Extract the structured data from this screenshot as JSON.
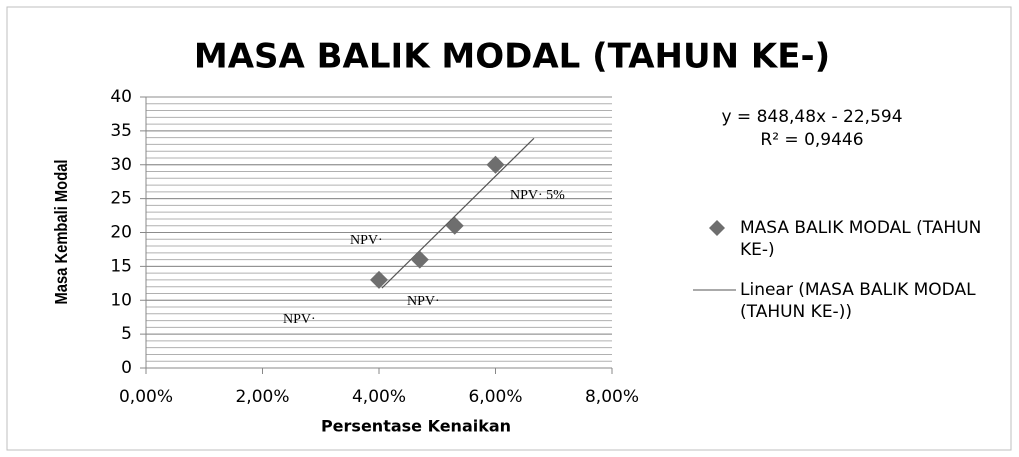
{
  "chart_data": {
    "type": "scatter",
    "title": "MASA BALIK MODAL (TAHUN KE-)",
    "x_label": "Persentase Kenaikan",
    "y_label": "Masa Kembali Modal",
    "series": [
      {
        "name": "MASA BALIK MODAL (TAHUN KE-)",
        "color": "#6e6e6e",
        "x": [
          0.04,
          0.047,
          0.053,
          0.06
        ],
        "values": [
          13,
          16,
          21,
          30
        ]
      }
    ],
    "trendline": {
      "name": "Linear (MASA BALIK MODAL (TAHUN KE-))",
      "color": "#555555",
      "x": [
        0.0405,
        0.0666
      ],
      "values": [
        11.8,
        33.9
      ],
      "equation": "y = 848,48x - 22,594",
      "r_squared": "R² = 0,9446"
    },
    "annotations": [
      "NPV· 5%",
      "NPV·",
      "NPV·",
      "NPV·"
    ],
    "xlim": [
      0,
      0.08
    ],
    "xticks": [
      {
        "value": 0,
        "label": "0,00%"
      },
      {
        "value": 0.02,
        "label": "2,00%"
      },
      {
        "value": 0.04,
        "label": "4,00%"
      },
      {
        "value": 0.06,
        "label": "6,00%"
      },
      {
        "value": 0.08,
        "label": "8,00%"
      }
    ],
    "ylim": [
      0,
      40
    ],
    "yticks": [
      0,
      5,
      10,
      15,
      20,
      25,
      30,
      35,
      40
    ],
    "grid": true,
    "minor_grid_step": 1,
    "legend": "right"
  }
}
